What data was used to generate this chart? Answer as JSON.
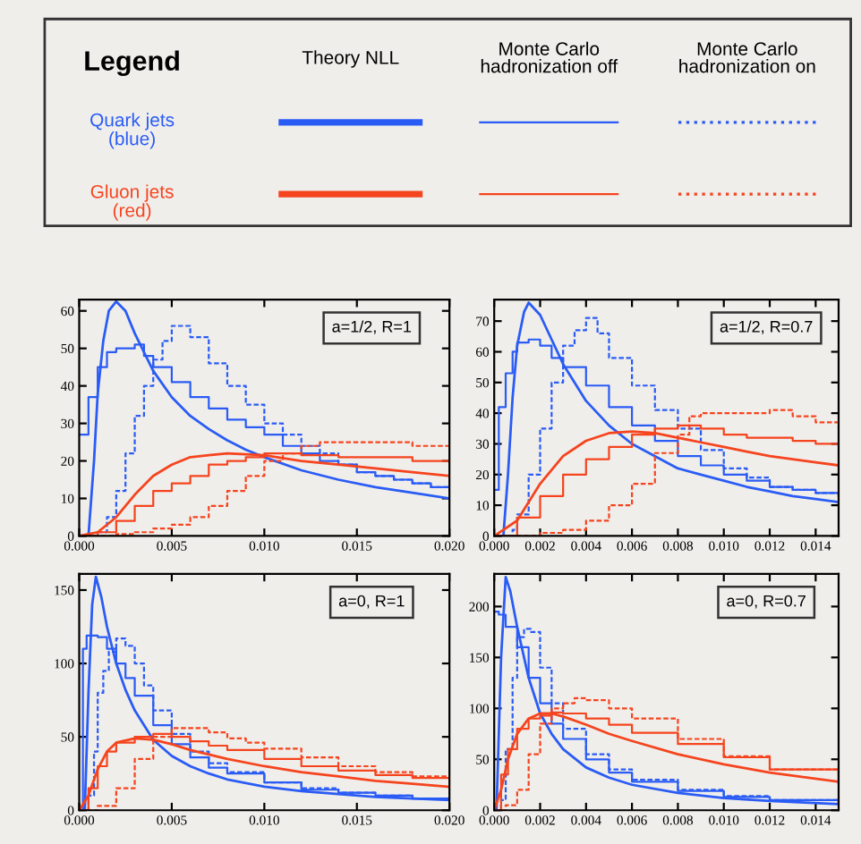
{
  "chart_data": [
    {
      "type": "other",
      "title": "Legend",
      "categories": [
        "Theory NLL",
        "Monte Carlo\nhadronization off",
        "Monte Carlo\nhadronization on"
      ],
      "y_categories": [
        "Quark jets\n(blue)",
        "Gluon jets\n(red)"
      ],
      "colors": [
        "#2a5cf5",
        "#f5441e"
      ]
    },
    {
      "type": "line",
      "annotations": [
        "a=1/2, R=1"
      ],
      "xlim": [
        0,
        0.02
      ],
      "ylim": [
        0,
        63
      ],
      "xticks": [
        {
          "value": 0,
          "label": "0.000"
        },
        {
          "value": 0.005,
          "label": "0.005"
        },
        {
          "value": 0.01,
          "label": "0.010"
        },
        {
          "value": 0.015,
          "label": "0.015"
        },
        {
          "value": 0.02,
          "label": "0.020"
        }
      ],
      "yticks": [
        0,
        10,
        20,
        30,
        40,
        50,
        60
      ],
      "series": [
        {
          "type": "line",
          "color": "#2a5cf5",
          "line_style": "solid",
          "x": [
            0.0005,
            0.0008,
            0.001,
            0.0013,
            0.0016,
            0.002,
            0.0025,
            0.003,
            0.004,
            0.005,
            0.006,
            0.007,
            0.008,
            0.009,
            0.01,
            0.012,
            0.014,
            0.016,
            0.018,
            0.02
          ],
          "values": [
            0,
            20,
            38,
            52,
            60,
            62.5,
            60,
            54,
            44,
            37,
            32,
            28.5,
            25.5,
            23,
            21,
            17.5,
            15,
            13,
            11.5,
            10
          ]
        },
        {
          "type": "step",
          "color": "#2a5cf5",
          "line_style": "solid",
          "x": [
            0,
            0.0005,
            0.001,
            0.0015,
            0.002,
            0.003,
            0.0035,
            0.004,
            0.005,
            0.006,
            0.007,
            0.008,
            0.009,
            0.01,
            0.011,
            0.012,
            0.013,
            0.014,
            0.015,
            0.016,
            0.017,
            0.018,
            0.019,
            0.02
          ],
          "values": [
            27,
            37,
            45,
            49,
            50,
            51,
            48,
            45,
            41,
            37,
            34,
            31,
            29,
            27,
            24,
            22,
            20,
            19,
            17,
            16,
            15,
            14,
            13,
            12
          ]
        },
        {
          "type": "step",
          "color": "#2a5cf5",
          "line_style": "dashed",
          "x": [
            0,
            0.001,
            0.0015,
            0.002,
            0.0025,
            0.003,
            0.0035,
            0.004,
            0.0045,
            0.005,
            0.0055,
            0.006,
            0.007,
            0.008,
            0.009,
            0.01,
            0.011,
            0.012,
            0.013,
            0.014,
            0.015,
            0.016,
            0.017,
            0.018,
            0.019,
            0.02
          ],
          "values": [
            0,
            1,
            5,
            12,
            22,
            32,
            40,
            47,
            52,
            56,
            56,
            53,
            46,
            40,
            35,
            30,
            27,
            24,
            22,
            19,
            17,
            16,
            15,
            14,
            13,
            12
          ]
        },
        {
          "type": "line",
          "color": "#f5441e",
          "line_style": "solid",
          "x": [
            0,
            0.001,
            0.002,
            0.003,
            0.004,
            0.005,
            0.006,
            0.007,
            0.008,
            0.01,
            0.012,
            0.014,
            0.016,
            0.018,
            0.02
          ],
          "values": [
            0,
            1,
            5,
            11,
            16,
            19,
            21,
            21.5,
            22,
            21.5,
            20,
            19,
            18,
            17,
            16
          ]
        },
        {
          "type": "step",
          "color": "#f5441e",
          "line_style": "solid",
          "x": [
            0,
            0.001,
            0.002,
            0.003,
            0.004,
            0.005,
            0.006,
            0.007,
            0.008,
            0.009,
            0.01,
            0.011,
            0.012,
            0.014,
            0.016,
            0.018,
            0.02
          ],
          "values": [
            0,
            1,
            4,
            8,
            12,
            14,
            16,
            19,
            20,
            21,
            22,
            22,
            21.5,
            21,
            21,
            20,
            19.5
          ]
        },
        {
          "type": "step",
          "color": "#f5441e",
          "line_style": "dashed",
          "x": [
            0,
            0.002,
            0.003,
            0.004,
            0.005,
            0.006,
            0.007,
            0.008,
            0.009,
            0.01,
            0.011,
            0.012,
            0.013,
            0.014,
            0.016,
            0.018,
            0.02
          ],
          "values": [
            0,
            0.5,
            1,
            2,
            3,
            5,
            8,
            12,
            16,
            20,
            22,
            24,
            25,
            25,
            25,
            24,
            23
          ]
        }
      ]
    },
    {
      "type": "line",
      "annotations": [
        "a=1/2, R=0.7"
      ],
      "xlim": [
        0,
        0.015
      ],
      "ylim": [
        0,
        77
      ],
      "xticks": [
        {
          "value": 0,
          "label": "0.000"
        },
        {
          "value": 0.002,
          "label": "0.002"
        },
        {
          "value": 0.004,
          "label": "0.004"
        },
        {
          "value": 0.006,
          "label": "0.006"
        },
        {
          "value": 0.008,
          "label": "0.008"
        },
        {
          "value": 0.01,
          "label": "0.010"
        },
        {
          "value": 0.012,
          "label": "0.012"
        },
        {
          "value": 0.014,
          "label": "0.014"
        }
      ],
      "yticks": [
        0,
        10,
        20,
        30,
        40,
        50,
        60,
        70
      ],
      "series": [
        {
          "type": "line",
          "color": "#2a5cf5",
          "line_style": "solid",
          "x": [
            0.0004,
            0.0006,
            0.0008,
            0.001,
            0.0013,
            0.0015,
            0.002,
            0.0025,
            0.003,
            0.004,
            0.005,
            0.006,
            0.007,
            0.008,
            0.009,
            0.01,
            0.011,
            0.012,
            0.013,
            0.014,
            0.015
          ],
          "values": [
            0,
            20,
            45,
            62,
            73,
            76,
            72,
            64,
            56,
            44,
            36,
            30,
            26,
            22,
            20,
            18,
            16,
            14.5,
            13,
            12,
            11
          ]
        },
        {
          "type": "step",
          "color": "#2a5cf5",
          "line_style": "solid",
          "x": [
            0,
            0.0002,
            0.0005,
            0.0008,
            0.001,
            0.0015,
            0.002,
            0.0025,
            0.003,
            0.004,
            0.005,
            0.006,
            0.007,
            0.008,
            0.009,
            0.01,
            0.011,
            0.012,
            0.013,
            0.014,
            0.015
          ],
          "values": [
            15,
            42,
            53,
            60,
            63,
            64,
            62,
            58,
            55,
            49,
            42,
            36,
            31,
            26,
            23,
            20,
            18,
            16,
            15,
            14,
            13
          ]
        },
        {
          "type": "step",
          "color": "#2a5cf5",
          "line_style": "dashed",
          "x": [
            0,
            0.0008,
            0.001,
            0.0015,
            0.002,
            0.0025,
            0.003,
            0.0035,
            0.004,
            0.0045,
            0.005,
            0.006,
            0.007,
            0.008,
            0.009,
            0.01,
            0.011,
            0.012,
            0.013,
            0.014,
            0.015
          ],
          "values": [
            0,
            2,
            7,
            20,
            35,
            50,
            62,
            67,
            71,
            66,
            58,
            49,
            41,
            35,
            28,
            22,
            19,
            16,
            15,
            14,
            13
          ]
        },
        {
          "type": "line",
          "color": "#f5441e",
          "line_style": "solid",
          "x": [
            0,
            0.001,
            0.002,
            0.003,
            0.004,
            0.005,
            0.006,
            0.007,
            0.008,
            0.009,
            0.01,
            0.011,
            0.012,
            0.013,
            0.014,
            0.015
          ],
          "values": [
            0,
            5,
            17,
            26,
            31,
            33.5,
            34,
            33.5,
            32,
            30.5,
            29,
            27.5,
            26,
            25,
            24,
            23
          ]
        },
        {
          "type": "step",
          "color": "#f5441e",
          "line_style": "solid",
          "x": [
            0,
            0.001,
            0.002,
            0.003,
            0.004,
            0.005,
            0.006,
            0.007,
            0.008,
            0.009,
            0.01,
            0.011,
            0.012,
            0.013,
            0.014,
            0.015
          ],
          "values": [
            0,
            6,
            13,
            20,
            25,
            29,
            33,
            35,
            36,
            35,
            33,
            32,
            32,
            31,
            30,
            30
          ]
        },
        {
          "type": "step",
          "color": "#f5441e",
          "line_style": "dashed",
          "x": [
            0,
            0.002,
            0.003,
            0.004,
            0.005,
            0.006,
            0.007,
            0.008,
            0.0085,
            0.009,
            0.01,
            0.011,
            0.012,
            0.013,
            0.014,
            0.015
          ],
          "values": [
            0,
            1,
            2,
            5,
            10,
            17,
            27,
            33,
            39,
            40,
            40,
            40,
            41,
            39,
            37,
            35
          ]
        }
      ]
    },
    {
      "type": "line",
      "annotations": [
        "a=0, R=1"
      ],
      "xlim": [
        0,
        0.02
      ],
      "ylim": [
        0,
        161
      ],
      "xticks": [
        {
          "value": 0,
          "label": "0.000"
        },
        {
          "value": 0.005,
          "label": "0.005"
        },
        {
          "value": 0.01,
          "label": "0.010"
        },
        {
          "value": 0.015,
          "label": "0.015"
        },
        {
          "value": 0.02,
          "label": "0.020"
        }
      ],
      "yticks": [
        0,
        50,
        100,
        150
      ],
      "series": [
        {
          "type": "line",
          "color": "#2a5cf5",
          "line_style": "solid",
          "x": [
            0.0003,
            0.0005,
            0.0007,
            0.0009,
            0.0012,
            0.0015,
            0.002,
            0.0025,
            0.003,
            0.004,
            0.005,
            0.006,
            0.007,
            0.008,
            0.01,
            0.012,
            0.014,
            0.016,
            0.018,
            0.02
          ],
          "values": [
            0,
            80,
            140,
            159,
            145,
            125,
            100,
            82,
            68,
            48,
            37,
            30,
            25,
            21,
            16,
            13,
            11,
            9,
            8,
            7
          ]
        },
        {
          "type": "step",
          "color": "#2a5cf5",
          "line_style": "solid",
          "x": [
            0,
            0.0002,
            0.0004,
            0.001,
            0.0015,
            0.002,
            0.0025,
            0.003,
            0.004,
            0.005,
            0.006,
            0.007,
            0.008,
            0.01,
            0.012,
            0.014,
            0.016,
            0.018,
            0.02
          ],
          "values": [
            0,
            110,
            119,
            118,
            110,
            100,
            90,
            78,
            58,
            45,
            36,
            29,
            25,
            19,
            14,
            12,
            10,
            8,
            7
          ]
        },
        {
          "type": "step",
          "color": "#2a5cf5",
          "line_style": "dashed",
          "x": [
            0,
            0.0005,
            0.0008,
            0.001,
            0.0013,
            0.0016,
            0.002,
            0.0025,
            0.003,
            0.0035,
            0.004,
            0.005,
            0.006,
            0.007,
            0.008,
            0.01,
            0.012,
            0.014,
            0.016,
            0.018,
            0.02
          ],
          "values": [
            0,
            10,
            40,
            80,
            95,
            108,
            117,
            112,
            100,
            85,
            68,
            52,
            40,
            32,
            26,
            19,
            15,
            12,
            10,
            8,
            7
          ]
        },
        {
          "type": "line",
          "color": "#f5441e",
          "line_style": "solid",
          "x": [
            0,
            0.0005,
            0.001,
            0.0015,
            0.002,
            0.003,
            0.004,
            0.005,
            0.006,
            0.008,
            0.01,
            0.012,
            0.014,
            0.016,
            0.018,
            0.02
          ],
          "values": [
            0,
            10,
            28,
            40,
            46,
            49,
            48,
            45,
            41,
            35,
            30,
            26,
            23,
            20,
            18,
            16
          ]
        },
        {
          "type": "step",
          "color": "#f5441e",
          "line_style": "solid",
          "x": [
            0,
            0.0005,
            0.001,
            0.0015,
            0.002,
            0.003,
            0.004,
            0.005,
            0.006,
            0.007,
            0.008,
            0.01,
            0.012,
            0.014,
            0.016,
            0.018,
            0.02
          ],
          "values": [
            0,
            15,
            30,
            40,
            46,
            50,
            52,
            50,
            47,
            44,
            41,
            35,
            30,
            27,
            24,
            22,
            20
          ]
        },
        {
          "type": "step",
          "color": "#f5441e",
          "line_style": "dashed",
          "x": [
            0,
            0.001,
            0.002,
            0.003,
            0.004,
            0.005,
            0.006,
            0.007,
            0.008,
            0.009,
            0.01,
            0.012,
            0.014,
            0.016,
            0.018,
            0.02
          ],
          "values": [
            0,
            3,
            15,
            35,
            50,
            56,
            56,
            53,
            49,
            46,
            42,
            36,
            30,
            26,
            23,
            20
          ]
        }
      ]
    },
    {
      "type": "line",
      "annotations": [
        "a=0, R=0.7"
      ],
      "xlim": [
        0,
        0.015
      ],
      "ylim": [
        0,
        232
      ],
      "xticks": [
        {
          "value": 0,
          "label": "0.000"
        },
        {
          "value": 0.002,
          "label": "0.002"
        },
        {
          "value": 0.004,
          "label": "0.004"
        },
        {
          "value": 0.006,
          "label": "0.006"
        },
        {
          "value": 0.008,
          "label": "0.008"
        },
        {
          "value": 0.01,
          "label": "0.010"
        },
        {
          "value": 0.012,
          "label": "0.012"
        },
        {
          "value": 0.014,
          "label": "0.014"
        }
      ],
      "yticks": [
        0,
        50,
        100,
        150,
        200
      ],
      "series": [
        {
          "type": "line",
          "color": "#2a5cf5",
          "line_style": "solid",
          "x": [
            0.0001,
            0.0003,
            0.0005,
            0.0007,
            0.001,
            0.0015,
            0.002,
            0.0025,
            0.003,
            0.004,
            0.005,
            0.006,
            0.008,
            0.01,
            0.012,
            0.015
          ],
          "values": [
            0,
            150,
            229,
            215,
            180,
            130,
            95,
            75,
            60,
            42,
            32,
            25,
            17,
            12,
            9,
            6
          ]
        },
        {
          "type": "step",
          "color": "#2a5cf5",
          "line_style": "solid",
          "x": [
            0,
            0.0002,
            0.0005,
            0.001,
            0.0015,
            0.002,
            0.0025,
            0.003,
            0.004,
            0.005,
            0.006,
            0.008,
            0.01,
            0.012,
            0.015
          ],
          "values": [
            195,
            192,
            180,
            160,
            130,
            105,
            85,
            70,
            50,
            37,
            28,
            19,
            13,
            10,
            7
          ]
        },
        {
          "type": "step",
          "color": "#2a5cf5",
          "line_style": "dashed",
          "x": [
            0,
            0.0003,
            0.0005,
            0.0008,
            0.001,
            0.0013,
            0.0016,
            0.002,
            0.0025,
            0.003,
            0.004,
            0.005,
            0.006,
            0.008,
            0.01,
            0.012,
            0.015
          ],
          "values": [
            0,
            10,
            60,
            130,
            170,
            178,
            175,
            140,
            105,
            80,
            55,
            40,
            30,
            20,
            14,
            10,
            7
          ]
        },
        {
          "type": "line",
          "color": "#f5441e",
          "line_style": "solid",
          "x": [
            0,
            0.0003,
            0.0006,
            0.001,
            0.0015,
            0.002,
            0.0025,
            0.003,
            0.004,
            0.005,
            0.006,
            0.008,
            0.01,
            0.012,
            0.015
          ],
          "values": [
            0,
            20,
            50,
            75,
            90,
            95,
            95,
            92,
            84,
            75,
            68,
            55,
            45,
            37,
            28
          ]
        },
        {
          "type": "step",
          "color": "#f5441e",
          "line_style": "solid",
          "x": [
            0,
            0.0003,
            0.0006,
            0.001,
            0.0015,
            0.002,
            0.0025,
            0.003,
            0.004,
            0.005,
            0.006,
            0.008,
            0.01,
            0.012,
            0.015
          ],
          "values": [
            0,
            35,
            60,
            80,
            90,
            93,
            96,
            95,
            90,
            84,
            76,
            65,
            52,
            40,
            28
          ]
        },
        {
          "type": "step",
          "color": "#f5441e",
          "line_style": "dashed",
          "x": [
            0,
            0.0005,
            0.001,
            0.0015,
            0.002,
            0.0025,
            0.003,
            0.0035,
            0.004,
            0.005,
            0.006,
            0.008,
            0.01,
            0.012,
            0.015
          ],
          "values": [
            0,
            5,
            20,
            55,
            85,
            100,
            105,
            110,
            108,
            100,
            90,
            70,
            53,
            40,
            26
          ]
        }
      ]
    }
  ]
}
